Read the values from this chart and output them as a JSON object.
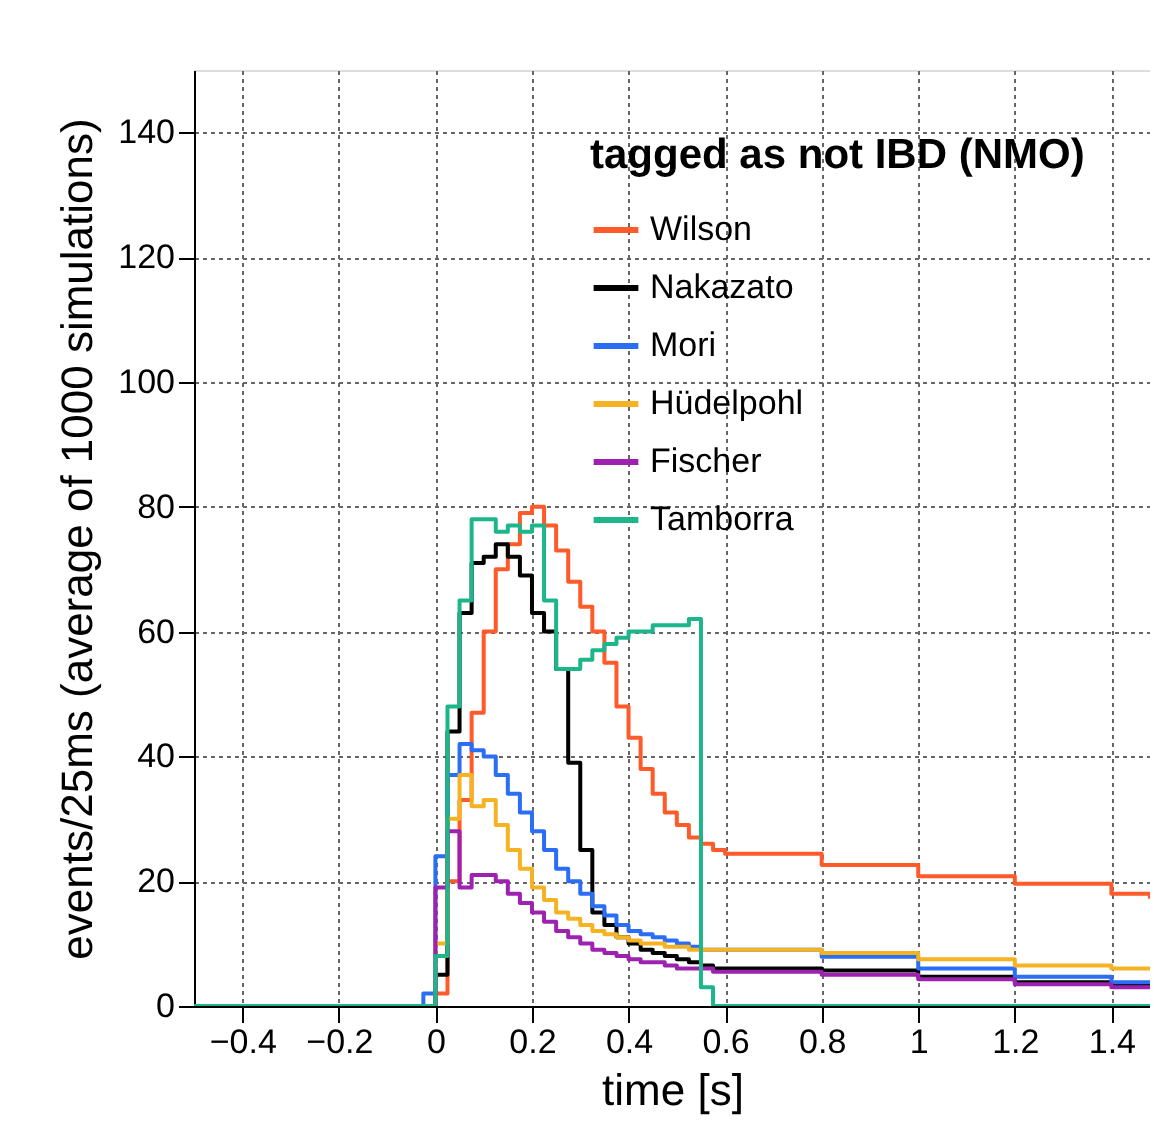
{
  "chart_data": {
    "type": "step",
    "xlabel": "time [s]",
    "ylabel": "events/25ms (average of 1000 simulations)",
    "legend_title": "tagged as not IBD (NMO)",
    "x": [
      -0.5,
      -0.025,
      0,
      0.025,
      0.05,
      0.075,
      0.1,
      0.125,
      0.15,
      0.175,
      0.2,
      0.225,
      0.25,
      0.275,
      0.3,
      0.325,
      0.35,
      0.375,
      0.4,
      0.425,
      0.45,
      0.475,
      0.5,
      0.525,
      0.55,
      0.575,
      0.6,
      0.8,
      1.0,
      1.2,
      1.4,
      1.48
    ],
    "series": [
      {
        "name": "Wilson",
        "color": "#ff5a2a",
        "values": [
          0,
          0,
          2,
          20,
          33,
          47,
          60,
          70,
          74,
          79,
          80,
          77,
          73,
          68,
          64,
          60,
          55,
          48,
          43,
          38,
          34,
          31,
          29,
          27,
          26,
          25,
          24.4,
          22.6,
          20.8,
          19.6,
          18,
          17.2
        ]
      },
      {
        "name": "Nakazato",
        "color": "#000000",
        "values": [
          0,
          0,
          5,
          44,
          63,
          71,
          72,
          74,
          72,
          69,
          63,
          60,
          54,
          39,
          25,
          15,
          13,
          11,
          10,
          9,
          8.5,
          8,
          7.5,
          7,
          6.5,
          6,
          6,
          5.7,
          4.7,
          3.8,
          3.3,
          3.3
        ]
      },
      {
        "name": "Mori",
        "color": "#2a6ef5",
        "values": [
          0,
          2,
          24,
          37,
          42,
          41,
          40,
          37,
          34,
          31,
          28,
          25,
          22,
          20,
          18,
          16,
          14.5,
          13,
          12,
          11.5,
          11,
          10.5,
          10,
          9.5,
          9,
          9,
          9,
          7.9,
          6,
          4.7,
          3.8,
          3.8
        ]
      },
      {
        "name": "Hüdelpohl",
        "color": "#f5b323",
        "values": [
          0,
          0,
          10,
          30,
          37,
          32,
          33,
          29,
          25,
          22,
          19,
          17,
          15,
          14,
          13,
          12,
          11.5,
          11,
          10.5,
          10,
          10,
          9.5,
          9.5,
          9,
          9,
          9,
          9,
          8.5,
          7.5,
          6.5,
          6,
          6
        ]
      },
      {
        "name": "Fischer",
        "color": "#9e22b0",
        "values": [
          0,
          0,
          19,
          28,
          19,
          21,
          21,
          20,
          18,
          16.5,
          15,
          13.5,
          12,
          11,
          10,
          9,
          8.5,
          8,
          7.5,
          7,
          7,
          6.5,
          6,
          6,
          6,
          5.5,
          5.5,
          5,
          4.3,
          3.5,
          3,
          3
        ]
      },
      {
        "name": "Tamborra",
        "color": "#1db58a",
        "values": [
          0,
          0,
          8,
          48,
          65,
          78,
          78,
          76,
          77,
          76,
          77,
          65,
          54,
          54,
          55.5,
          57,
          58,
          59,
          60,
          60,
          61,
          61,
          61,
          62,
          3,
          0,
          0,
          0,
          0,
          0,
          0,
          0
        ]
      }
    ],
    "xlim": [
      -0.5,
      1.48
    ],
    "ylim": [
      0,
      150
    ],
    "xticks": [
      -0.4,
      -0.2,
      0,
      0.2,
      0.4,
      0.6,
      0.8,
      1,
      1.2,
      1.4
    ],
    "yticks": [
      0,
      20,
      40,
      60,
      80,
      100,
      120,
      140
    ],
    "grid": true,
    "legend": "top right",
    "line_style": "solid",
    "marker": "none"
  }
}
